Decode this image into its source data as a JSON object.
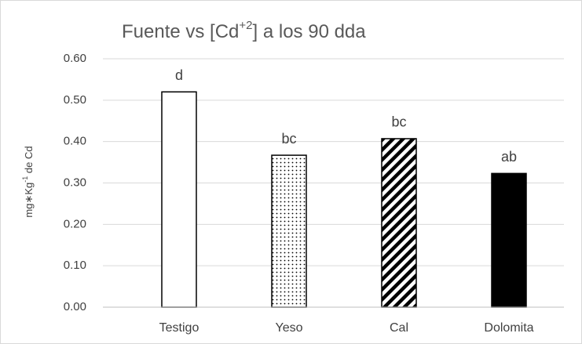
{
  "chart_data": {
    "type": "bar",
    "title": [
      "Fuente vs [Cd",
      "+2",
      "] a los 90 dda"
    ],
    "ylabel": [
      "mg∗Kg",
      "-1",
      " de Cd"
    ],
    "categories": [
      "Testigo",
      "Yeso",
      "Cal",
      "Dolomita"
    ],
    "values": [
      0.52,
      0.367,
      0.407,
      0.323
    ],
    "annotations": [
      "d",
      "bc",
      "bc",
      "ab"
    ],
    "fills": [
      "white",
      "dots",
      "hatch",
      "black"
    ],
    "ylim": [
      0,
      0.6
    ],
    "yticks": [
      {
        "value": 0,
        "label": "0.00"
      },
      {
        "value": 0.1,
        "label": "0.10"
      },
      {
        "value": 0.2,
        "label": "0.20"
      },
      {
        "value": 0.3,
        "label": "0.30"
      },
      {
        "value": 0.4,
        "label": "0.40"
      },
      {
        "value": 0.5,
        "label": "0.50"
      },
      {
        "value": 0.6,
        "label": "0.60"
      }
    ],
    "grid": true
  }
}
